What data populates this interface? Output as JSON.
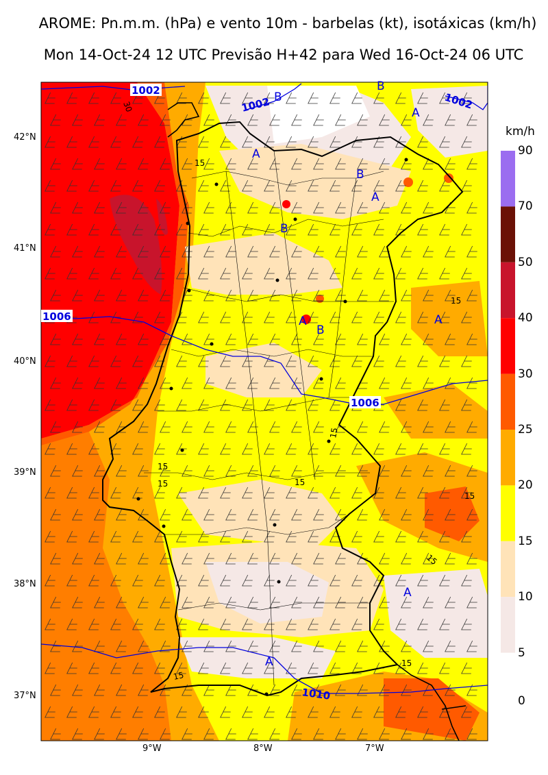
{
  "header": {
    "title_line1": "AROME: Pn.m.m. (hPa) e vento 10m - barbelas (kt), isotáxicas (km/h)",
    "title_line2": "Mon 14-Oct-24 12 UTC Previsão H+42 para Wed 16-Oct-24 06 UTC"
  },
  "axes": {
    "lat_labels": [
      "42°N",
      "41°N",
      "40°N",
      "39°N",
      "38°N",
      "37°N"
    ],
    "lon_labels": [
      "9°W",
      "8°W",
      "7°W"
    ]
  },
  "colorbar": {
    "unit": "km/h",
    "ticks": [
      "90",
      "70",
      "50",
      "40",
      "30",
      "25",
      "20",
      "15",
      "10",
      "5",
      "0"
    ],
    "colors": [
      "#9b6df0",
      "#6b1106",
      "#c8142c",
      "#ff0000",
      "#ff5a00",
      "#ffab00",
      "#ffff00",
      "#ffe3b8",
      "#f5e8e6"
    ]
  },
  "isobars": {
    "labels": [
      "1002",
      "1002",
      "1002",
      "1006",
      "1006",
      "1010"
    ],
    "color": "#0000dd"
  },
  "isotach_labels": [
    "30",
    "15",
    "15",
    "15",
    "15",
    "15",
    "15",
    "15",
    "15",
    "15",
    "15"
  ],
  "pressure_centers": {
    "highs": [
      "A",
      "A",
      "A",
      "A",
      "A",
      "A",
      "A"
    ],
    "lows": [
      "B",
      "B",
      "B",
      "B",
      "B"
    ]
  }
}
